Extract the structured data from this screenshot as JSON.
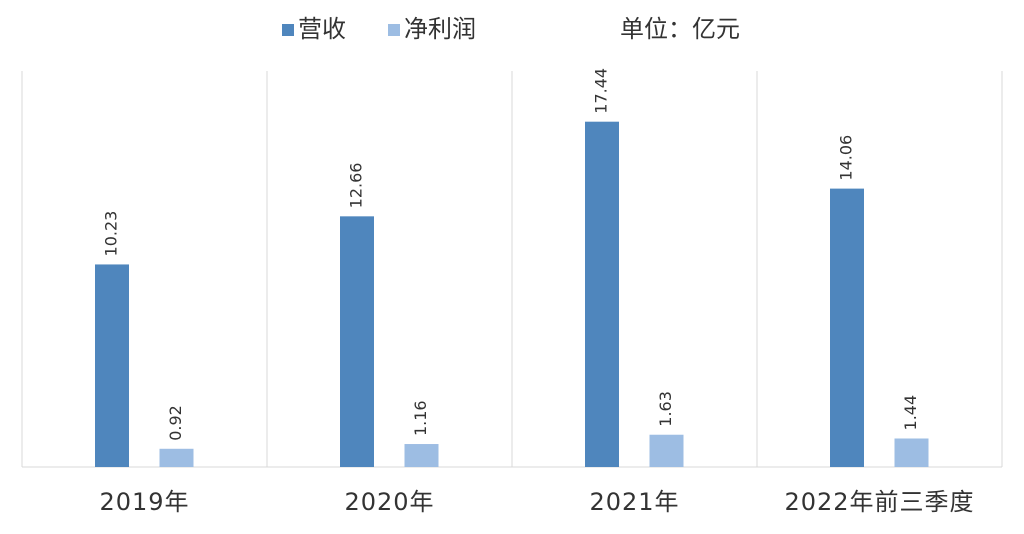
{
  "chart_data": {
    "type": "bar",
    "unit": "单位：亿元",
    "categories": [
      "2019年",
      "2020年",
      "2021年",
      "2022年前三季度"
    ],
    "series": [
      {
        "name": "营收",
        "color": "#4f86bd",
        "values": [
          10.23,
          12.66,
          17.44,
          14.06
        ]
      },
      {
        "name": "净利润",
        "color": "#9dbde3",
        "values": [
          0.92,
          1.16,
          1.63,
          1.44
        ]
      }
    ],
    "ylim": [
      0,
      20
    ]
  }
}
